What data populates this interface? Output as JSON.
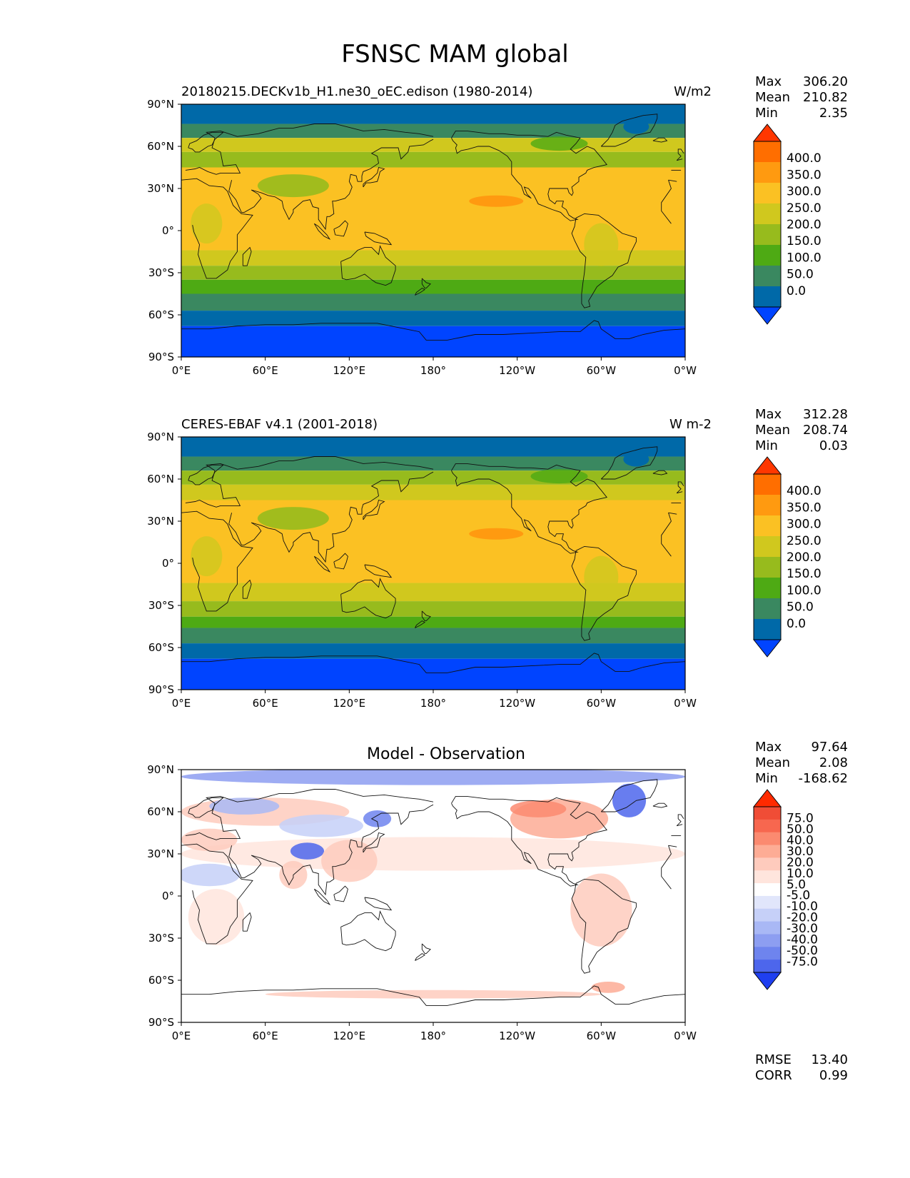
{
  "title": "FSNSC MAM global",
  "chart_data": [
    {
      "type": "heatmap",
      "title_left": "20180215.DECKv1b_H1.ne30_oEC.edison (1980-2014)",
      "units": "W/m2",
      "x_ticks": [
        "0°E",
        "60°E",
        "120°E",
        "180°",
        "120°W",
        "60°W",
        "0°W"
      ],
      "y_ticks": [
        "90°N",
        "60°N",
        "30°N",
        "0°",
        "30°S",
        "60°S",
        "90°S"
      ],
      "stats": {
        "max": "306.20",
        "mean": "210.82",
        "min": "2.35"
      },
      "colorbar_levels": [
        "400.0",
        "350.0",
        "300.0",
        "250.0",
        "200.0",
        "150.0",
        "100.0",
        "50.0",
        "0.0"
      ],
      "colorbar_colors": [
        "#ff3700",
        "#ff6e00",
        "#ff9a10",
        "#fbc123",
        "#d0c81e",
        "#97bb1d",
        "#4eaa14",
        "#3a8860",
        "#0069a8",
        "#0044ff"
      ],
      "lat_bands": [
        {
          "lat": [
            90,
            76
          ],
          "level": 1
        },
        {
          "lat": [
            76,
            66
          ],
          "level": 2
        },
        {
          "lat": [
            66,
            56
          ],
          "level": 5
        },
        {
          "lat": [
            56,
            45
          ],
          "level": 4
        },
        {
          "lat": [
            45,
            -14
          ],
          "level": 6
        },
        {
          "lat": [
            -14,
            -25
          ],
          "level": 5
        },
        {
          "lat": [
            -25,
            -35
          ],
          "level": 4
        },
        {
          "lat": [
            -35,
            -45
          ],
          "level": 3
        },
        {
          "lat": [
            -45,
            -57
          ],
          "level": 2
        },
        {
          "lat": [
            -57,
            -68
          ],
          "level": 1
        },
        {
          "lat": [
            -68,
            -90
          ],
          "level": 0
        }
      ]
    },
    {
      "type": "heatmap",
      "title_left": "CERES-EBAF v4.1 (2001-2018)",
      "units": "W m-2",
      "x_ticks": [
        "0°E",
        "60°E",
        "120°E",
        "180°",
        "120°W",
        "60°W",
        "0°W"
      ],
      "y_ticks": [
        "90°N",
        "60°N",
        "30°N",
        "0°",
        "30°S",
        "60°S",
        "90°S"
      ],
      "stats": {
        "max": "312.28",
        "mean": "208.74",
        "min": "0.03"
      },
      "colorbar_levels": [
        "400.0",
        "350.0",
        "300.0",
        "250.0",
        "200.0",
        "150.0",
        "100.0",
        "50.0",
        "0.0"
      ],
      "colorbar_colors": [
        "#ff3700",
        "#ff6e00",
        "#ff9a10",
        "#fbc123",
        "#d0c81e",
        "#97bb1d",
        "#4eaa14",
        "#3a8860",
        "#0069a8",
        "#0044ff"
      ],
      "lat_bands": [
        {
          "lat": [
            90,
            76
          ],
          "level": 1
        },
        {
          "lat": [
            76,
            66
          ],
          "level": 2
        },
        {
          "lat": [
            66,
            56
          ],
          "level": 4
        },
        {
          "lat": [
            56,
            45
          ],
          "level": 5
        },
        {
          "lat": [
            45,
            -14
          ],
          "level": 6
        },
        {
          "lat": [
            -14,
            -27
          ],
          "level": 5
        },
        {
          "lat": [
            -27,
            -38
          ],
          "level": 4
        },
        {
          "lat": [
            -38,
            -46
          ],
          "level": 3
        },
        {
          "lat": [
            -46,
            -57
          ],
          "level": 2
        },
        {
          "lat": [
            -57,
            -68
          ],
          "level": 1
        },
        {
          "lat": [
            -68,
            -90
          ],
          "level": 0
        }
      ]
    },
    {
      "type": "heatmap",
      "title_center": "Model - Observation",
      "x_ticks": [
        "0°E",
        "60°E",
        "120°E",
        "180°",
        "120°W",
        "60°W",
        "0°W"
      ],
      "y_ticks": [
        "90°N",
        "60°N",
        "30°N",
        "0°",
        "30°S",
        "60°S",
        "90°S"
      ],
      "stats": {
        "max": "97.64",
        "mean": "2.08",
        "min": "-168.62"
      },
      "colorbar_levels": [
        "75.0",
        "50.0",
        "40.0",
        "30.0",
        "20.0",
        "10.0",
        "5.0",
        "-5.0",
        "-10.0",
        "-20.0",
        "-30.0",
        "-40.0",
        "-50.0",
        "-75.0"
      ],
      "colorbar_colors": [
        "#ff2a00",
        "#f04d36",
        "#f7674f",
        "#fb8a70",
        "#fdac95",
        "#fecbbd",
        "#ffe5dd",
        "#ffffff",
        "#e1e6fb",
        "#c6d0f8",
        "#a9b8f5",
        "#8d9ef1",
        "#6e84ee",
        "#4d66ec",
        "#1f3ff0"
      ],
      "rmse": "13.40",
      "corr": "0.99",
      "stats_labels": {
        "max": "Max",
        "mean": "Mean",
        "min": "Min",
        "rmse": "RMSE",
        "corr": "CORR"
      }
    }
  ]
}
